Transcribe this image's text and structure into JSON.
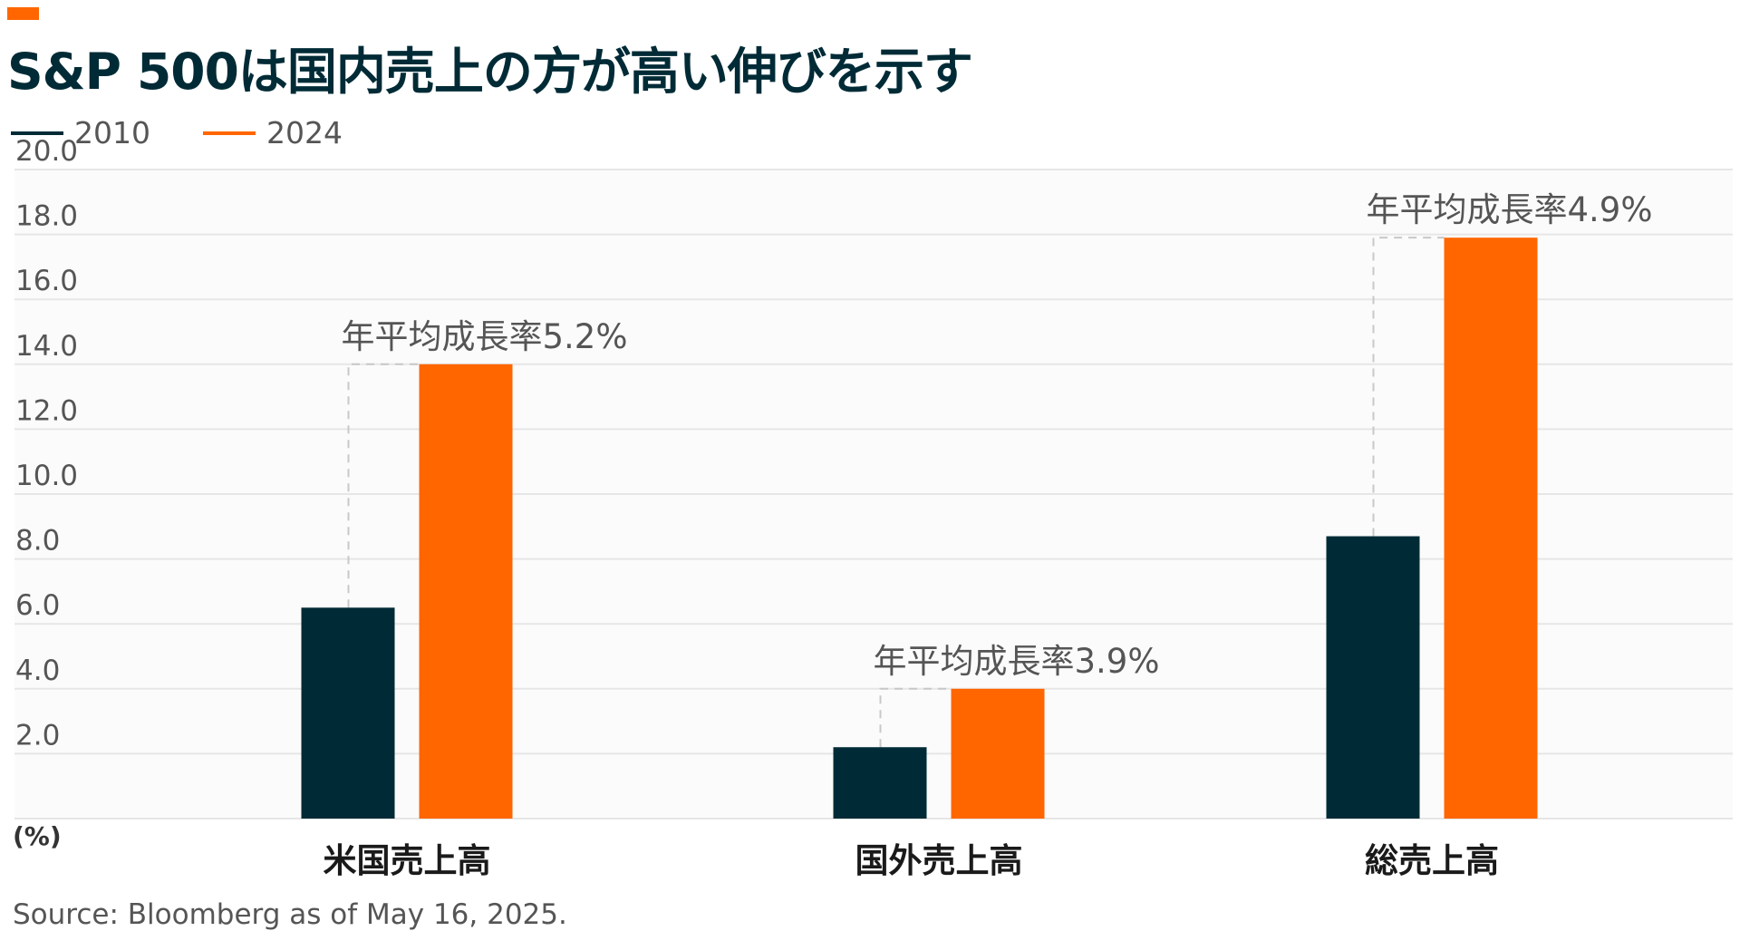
{
  "title": "S&P 500は国内売上の方が高い伸びを示す",
  "source": "Source: Bloomberg as of May 16, 2025.",
  "colors": {
    "accent": "#ff6600",
    "series_2010": "#002b36",
    "series_2024": "#ff6600",
    "grid": "#e6e6e6",
    "connector": "#c8c8c8",
    "text": "#555555"
  },
  "legend": [
    {
      "label": "2010",
      "color": "#002b36"
    },
    {
      "label": "2024",
      "color": "#ff6600"
    }
  ],
  "chart_data": {
    "type": "bar",
    "title": "S&P 500は国内売上の方が高い伸びを示す",
    "xlabel": "",
    "ylabel": "",
    "y_unit_label": "(%)",
    "categories": [
      "米国売上高",
      "国外売上高",
      "総売上高"
    ],
    "series": [
      {
        "name": "2010",
        "values": [
          6.5,
          2.2,
          8.7
        ]
      },
      {
        "name": "2024",
        "values": [
          14.0,
          4.0,
          17.9
        ]
      }
    ],
    "annotations": [
      "年平均成長率5.2%",
      "年平均成長率3.9%",
      "年平均成長率4.9%"
    ],
    "y_ticks": [
      "2.0",
      "4.0",
      "6.0",
      "8.0",
      "10.0",
      "12.0",
      "14.0",
      "16.0",
      "18.0",
      "20.0"
    ],
    "ylim": [
      0,
      20
    ],
    "grid": true,
    "legend_position": "top-left"
  }
}
